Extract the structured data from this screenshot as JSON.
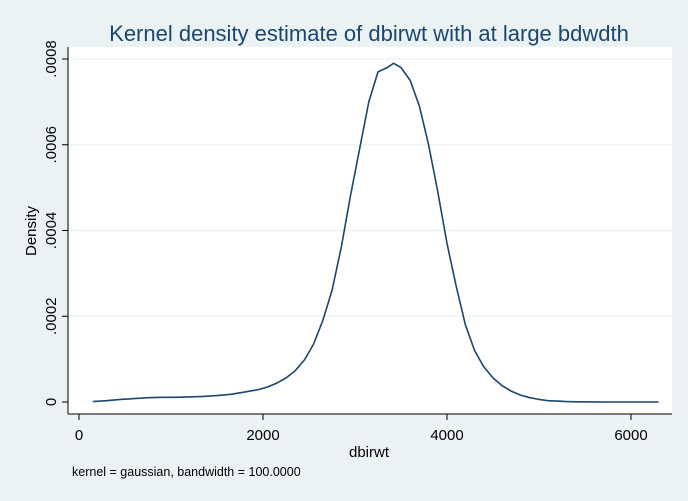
{
  "chart_data": {
    "type": "line",
    "title": "Kernel density estimate of dbirwt with at large bdwdth",
    "xlabel": "dbirwt",
    "ylabel": "Density",
    "note": "kernel = gaussian, bandwidth = 100.0000",
    "xlim": [
      0,
      6300
    ],
    "ylim": [
      0,
      0.0008
    ],
    "grid": true,
    "legend": "none",
    "x_ticks": [
      {
        "value": 0,
        "label": "0"
      },
      {
        "value": 2000,
        "label": "2000"
      },
      {
        "value": 4000,
        "label": "4000"
      },
      {
        "value": 6000,
        "label": "6000"
      }
    ],
    "y_ticks": [
      {
        "value": 0,
        "label": "0"
      },
      {
        "value": 0.0002,
        "label": ".0002"
      },
      {
        "value": 0.0004,
        "label": ".0004"
      },
      {
        "value": 0.0006,
        "label": ".0006"
      },
      {
        "value": 0.0008,
        "label": ".0008"
      }
    ],
    "series": [
      {
        "color": "#1a476f",
        "x": [
          150,
          300,
          450,
          600,
          750,
          900,
          1050,
          1200,
          1350,
          1500,
          1650,
          1800,
          1950,
          2050,
          2150,
          2250,
          2350,
          2450,
          2550,
          2650,
          2750,
          2850,
          2950,
          3050,
          3150,
          3250,
          3350,
          3420,
          3500,
          3600,
          3700,
          3800,
          3900,
          4000,
          4100,
          4200,
          4300,
          4400,
          4500,
          4600,
          4700,
          4800,
          4900,
          5000,
          5100,
          5200,
          5300,
          5400,
          5600,
          5800,
          6000,
          6300
        ],
        "y": [
          1e-06,
          3e-06,
          6e-06,
          8e-06,
          1e-05,
          1.1e-05,
          1.1e-05,
          1.2e-05,
          1.3e-05,
          1.5e-05,
          1.8e-05,
          2.3e-05,
          2.9e-05,
          3.5e-05,
          4.4e-05,
          5.6e-05,
          7.3e-05,
          9.8e-05,
          0.000135,
          0.00019,
          0.00026,
          0.00036,
          0.00048,
          0.00059,
          0.0007,
          0.00077,
          0.00078,
          0.00079,
          0.00078,
          0.00075,
          0.00069,
          0.0006,
          0.00049,
          0.00037,
          0.00027,
          0.00018,
          0.00012,
          8.2e-05,
          5.6e-05,
          3.8e-05,
          2.5e-05,
          1.6e-05,
          1e-05,
          6e-06,
          3e-06,
          2e-06,
          1e-06,
          5e-07,
          2e-07,
          1e-07,
          1e-07,
          1e-07
        ]
      }
    ]
  }
}
